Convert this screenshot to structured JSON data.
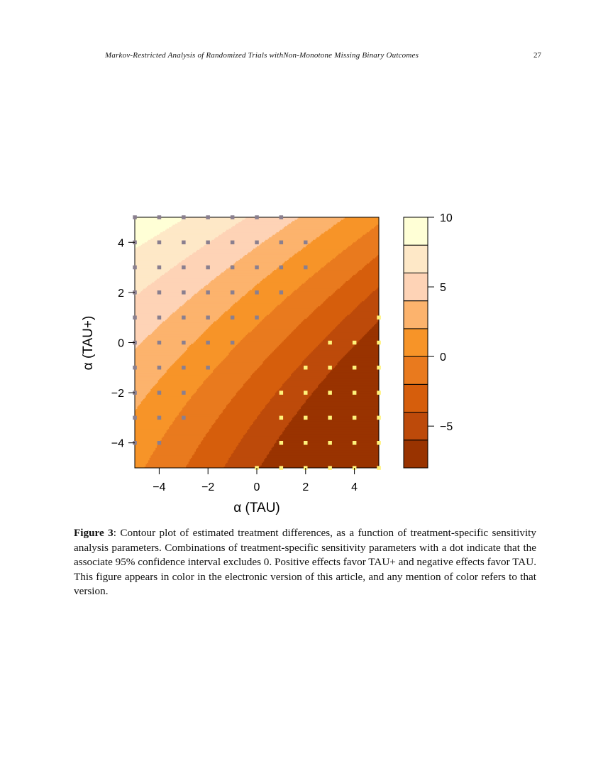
{
  "header": {
    "running_title": "Markov-Restricted Analysis of Randomized Trials withNon-Monotone Missing Binary Outcomes",
    "page_number": "27"
  },
  "figure": {
    "label": "Figure 3",
    "caption": ": Contour plot of estimated treatment differences, as a function of treatment-specific sensitivity analysis parameters. Combinations of treatment-specific sensitivity parameters with a dot indicate that the associate 95% confidence interval excludes 0. Positive effects favor TAU+ and negative effects favor TAU. This figure appears in color in the electronic version of this article, and any mention of color refers to that version."
  },
  "chart_data": {
    "type": "heatmap",
    "title": "",
    "xlabel": "α (TAU)",
    "ylabel": "α (TAU+)",
    "xlim": [
      -5,
      5
    ],
    "ylim": [
      -5,
      5
    ],
    "x_ticks": [
      -4,
      -2,
      0,
      2,
      4
    ],
    "y_ticks": [
      -4,
      -2,
      0,
      2,
      4
    ],
    "x_tick_labels": [
      "−4",
      "−2",
      "0",
      "2",
      "4"
    ],
    "y_tick_labels": [
      "−4",
      "−2",
      "0",
      "2",
      "4"
    ],
    "grid": false,
    "legend": "right",
    "levels": [
      -8,
      -6,
      -4,
      -2,
      0,
      2,
      4,
      6,
      8,
      10
    ],
    "level_colors": [
      "#993300",
      "#BD4A0A",
      "#D65E0C",
      "#E97A1E",
      "#F79428",
      "#FCB36D",
      "#FED3B6",
      "#FEE8C7",
      "#FFFFD6"
    ],
    "colorbar_ticks": [
      -5,
      0,
      5,
      10
    ],
    "colorbar_tick_labels": [
      "−5",
      "0",
      "5",
      "10"
    ],
    "dot_colors": {
      "positive_excludes_zero": "#8A7F8F",
      "negative_excludes_zero": "#FFF27A"
    },
    "dots_positive": [
      [
        -5,
        5
      ],
      [
        -4,
        5
      ],
      [
        -3,
        5
      ],
      [
        -2,
        5
      ],
      [
        -1,
        5
      ],
      [
        0,
        5
      ],
      [
        1,
        5
      ],
      [
        -5,
        4
      ],
      [
        -4,
        4
      ],
      [
        -3,
        4
      ],
      [
        -2,
        4
      ],
      [
        -1,
        4
      ],
      [
        0,
        4
      ],
      [
        1,
        4
      ],
      [
        2,
        4
      ],
      [
        -5,
        3
      ],
      [
        -4,
        3
      ],
      [
        -3,
        3
      ],
      [
        -2,
        3
      ],
      [
        -1,
        3
      ],
      [
        0,
        3
      ],
      [
        1,
        3
      ],
      [
        2,
        3
      ],
      [
        -5,
        2
      ],
      [
        -4,
        2
      ],
      [
        -3,
        2
      ],
      [
        -2,
        2
      ],
      [
        -1,
        2
      ],
      [
        0,
        2
      ],
      [
        1,
        2
      ],
      [
        -5,
        1
      ],
      [
        -4,
        1
      ],
      [
        -3,
        1
      ],
      [
        -2,
        1
      ],
      [
        -1,
        1
      ],
      [
        0,
        1
      ],
      [
        -5,
        0
      ],
      [
        -4,
        0
      ],
      [
        -3,
        0
      ],
      [
        -2,
        0
      ],
      [
        -1,
        0
      ],
      [
        -5,
        -1
      ],
      [
        -4,
        -1
      ],
      [
        -3,
        -1
      ],
      [
        -2,
        -1
      ],
      [
        -5,
        -2
      ],
      [
        -4,
        -2
      ],
      [
        -3,
        -2
      ],
      [
        -5,
        -3
      ],
      [
        -4,
        -3
      ],
      [
        -3,
        -3
      ],
      [
        -5,
        -4
      ],
      [
        -4,
        -4
      ]
    ],
    "dots_negative": [
      [
        5,
        1
      ],
      [
        3,
        0
      ],
      [
        4,
        0
      ],
      [
        5,
        0
      ],
      [
        2,
        -1
      ],
      [
        3,
        -1
      ],
      [
        4,
        -1
      ],
      [
        5,
        -1
      ],
      [
        1,
        -2
      ],
      [
        2,
        -2
      ],
      [
        3,
        -2
      ],
      [
        4,
        -2
      ],
      [
        5,
        -2
      ],
      [
        1,
        -3
      ],
      [
        2,
        -3
      ],
      [
        3,
        -3
      ],
      [
        4,
        -3
      ],
      [
        5,
        -3
      ],
      [
        1,
        -4
      ],
      [
        2,
        -4
      ],
      [
        3,
        -4
      ],
      [
        4,
        -4
      ],
      [
        5,
        -4
      ],
      [
        0,
        -5
      ],
      [
        1,
        -5
      ],
      [
        2,
        -5
      ],
      [
        3,
        -5
      ],
      [
        4,
        -5
      ],
      [
        5,
        -5
      ]
    ]
  }
}
